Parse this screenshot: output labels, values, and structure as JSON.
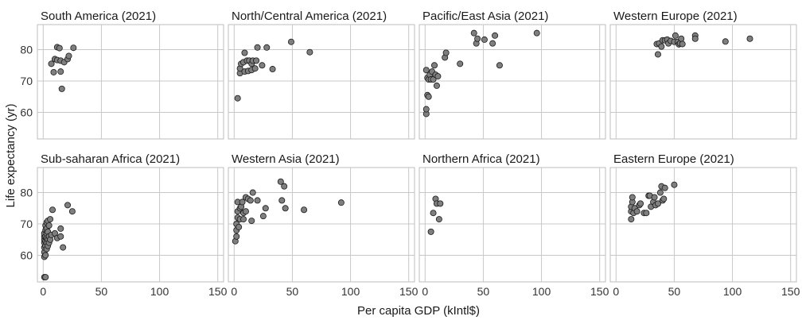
{
  "chart_data": {
    "type": "scatter",
    "xlabel": "Per capita GDP (kIntl$)",
    "ylabel": "Life expectancy (yr)",
    "xlim": [
      -5,
      155
    ],
    "ylim": [
      51.5,
      88
    ],
    "xticks": [
      0,
      50,
      100,
      150
    ],
    "yticks": [
      60,
      70,
      80
    ],
    "grid": true,
    "facets": "4x2",
    "panels": [
      {
        "title": "South America (2021)",
        "points": [
          [
            7,
            75.5
          ],
          [
            9,
            72.8
          ],
          [
            10,
            77
          ],
          [
            12,
            80.8
          ],
          [
            12,
            76.7
          ],
          [
            14,
            80.5
          ],
          [
            15,
            73
          ],
          [
            15,
            76.5
          ],
          [
            16,
            67.5
          ],
          [
            18,
            76
          ],
          [
            21,
            77
          ],
          [
            22,
            78
          ],
          [
            26,
            80.6
          ]
        ]
      },
      {
        "title": "North/Central America (2021)",
        "points": [
          [
            3,
            64.5
          ],
          [
            5,
            72.5
          ],
          [
            5,
            74
          ],
          [
            6,
            75.5
          ],
          [
            8,
            76
          ],
          [
            9,
            73
          ],
          [
            9,
            79
          ],
          [
            11,
            76.5
          ],
          [
            12,
            73.2
          ],
          [
            13,
            76.5
          ],
          [
            15,
            73.5
          ],
          [
            15,
            75.5
          ],
          [
            16,
            76.5
          ],
          [
            18,
            74
          ],
          [
            19,
            76.5
          ],
          [
            20,
            80.7
          ],
          [
            24,
            75
          ],
          [
            28,
            80.7
          ],
          [
            33,
            73.8
          ],
          [
            49,
            82.5
          ],
          [
            65,
            79.2
          ]
        ]
      },
      {
        "title": "Pacific/East Asia (2021)",
        "points": [
          [
            1,
            59.5
          ],
          [
            1,
            61
          ],
          [
            1,
            73.5
          ],
          [
            2,
            65.5
          ],
          [
            2,
            71
          ],
          [
            3,
            65
          ],
          [
            3,
            70.5
          ],
          [
            4,
            72
          ],
          [
            5,
            70.5
          ],
          [
            6,
            73
          ],
          [
            7,
            70.5
          ],
          [
            8,
            75
          ],
          [
            9,
            72
          ],
          [
            10,
            68.5
          ],
          [
            11,
            71.5
          ],
          [
            17,
            77.5
          ],
          [
            18,
            79
          ],
          [
            30,
            75.5
          ],
          [
            42,
            85.3
          ],
          [
            44,
            82
          ],
          [
            45,
            83.5
          ],
          [
            51,
            83.2
          ],
          [
            58,
            82
          ],
          [
            60,
            84.5
          ],
          [
            64,
            75
          ],
          [
            96,
            85.3
          ]
        ]
      },
      {
        "title": "Western Europe (2021)",
        "points": [
          [
            35,
            81.8
          ],
          [
            36,
            78.5
          ],
          [
            37,
            82
          ],
          [
            39,
            81
          ],
          [
            40,
            83
          ],
          [
            42,
            83
          ],
          [
            44,
            83.2
          ],
          [
            45,
            82
          ],
          [
            47,
            82.8
          ],
          [
            50,
            82.5
          ],
          [
            51,
            84.5
          ],
          [
            53,
            82.5
          ],
          [
            54,
            81.7
          ],
          [
            55,
            82
          ],
          [
            56,
            83.5
          ],
          [
            57,
            81.8
          ],
          [
            68,
            84.5
          ],
          [
            68,
            83.5
          ],
          [
            94,
            82.6
          ],
          [
            115,
            83.5
          ]
        ]
      },
      {
        "title": "Sub-saharan Africa (2021)",
        "points": [
          [
            1,
            53
          ],
          [
            2,
            53
          ],
          [
            1,
            59.5
          ],
          [
            1,
            61
          ],
          [
            1,
            62.5
          ],
          [
            1,
            64
          ],
          [
            1,
            65
          ],
          [
            1,
            66
          ],
          [
            1,
            67
          ],
          [
            2,
            60
          ],
          [
            2,
            63
          ],
          [
            2,
            64.5
          ],
          [
            2,
            66
          ],
          [
            2,
            68
          ],
          [
            2,
            69.5
          ],
          [
            3,
            62
          ],
          [
            3,
            64
          ],
          [
            3,
            65.5
          ],
          [
            3,
            67
          ],
          [
            3,
            68.5
          ],
          [
            3,
            70.5
          ],
          [
            4,
            63
          ],
          [
            4,
            65
          ],
          [
            4,
            67.5
          ],
          [
            4,
            71
          ],
          [
            5,
            64
          ],
          [
            5,
            66
          ],
          [
            5,
            69.5
          ],
          [
            6,
            65
          ],
          [
            6,
            71.5
          ],
          [
            7,
            66.5
          ],
          [
            8,
            74.5
          ],
          [
            10,
            67
          ],
          [
            12,
            65.5
          ],
          [
            15,
            68.5
          ],
          [
            15,
            66
          ],
          [
            17,
            62.5
          ],
          [
            21,
            76
          ],
          [
            25,
            74
          ]
        ]
      },
      {
        "title": "Western Asia (2021)",
        "points": [
          [
            1,
            64.5
          ],
          [
            2,
            66
          ],
          [
            2,
            68
          ],
          [
            2,
            70
          ],
          [
            3,
            72
          ],
          [
            3,
            74
          ],
          [
            3,
            77
          ],
          [
            4,
            69
          ],
          [
            5,
            71.5
          ],
          [
            5,
            75
          ],
          [
            6,
            75.5
          ],
          [
            7,
            77
          ],
          [
            8,
            73.5
          ],
          [
            8,
            71.5
          ],
          [
            10,
            74
          ],
          [
            10,
            78.5
          ],
          [
            12,
            78
          ],
          [
            14,
            77.5
          ],
          [
            15,
            71
          ],
          [
            16,
            80
          ],
          [
            20,
            77.5
          ],
          [
            25,
            72.5
          ],
          [
            27,
            75
          ],
          [
            40,
            83.5
          ],
          [
            41,
            77.5
          ],
          [
            43,
            82
          ],
          [
            44,
            75
          ],
          [
            60,
            74.5
          ],
          [
            92,
            76.8
          ]
        ]
      },
      {
        "title": "Northern Africa (2021)",
        "points": [
          [
            5,
            67.5
          ],
          [
            7,
            73.5
          ],
          [
            9,
            78
          ],
          [
            10,
            76.5
          ],
          [
            12,
            71.5
          ],
          [
            13,
            76.5
          ]
        ]
      },
      {
        "title": "Eastern Europe (2021)",
        "points": [
          [
            13,
            71.5
          ],
          [
            13,
            74
          ],
          [
            13,
            75.5
          ],
          [
            14,
            77
          ],
          [
            14,
            78.5
          ],
          [
            15,
            73.5
          ],
          [
            16,
            75
          ],
          [
            18,
            74
          ],
          [
            20,
            76
          ],
          [
            21,
            76.5
          ],
          [
            24,
            73.5
          ],
          [
            26,
            73.5
          ],
          [
            28,
            79
          ],
          [
            29,
            79
          ],
          [
            30,
            75.5
          ],
          [
            32,
            77
          ],
          [
            33,
            78.5
          ],
          [
            34,
            76
          ],
          [
            36,
            76.5
          ],
          [
            38,
            80
          ],
          [
            39,
            82
          ],
          [
            40,
            77.5
          ],
          [
            41,
            78
          ],
          [
            42,
            81.5
          ],
          [
            50,
            82.5
          ]
        ]
      }
    ]
  }
}
